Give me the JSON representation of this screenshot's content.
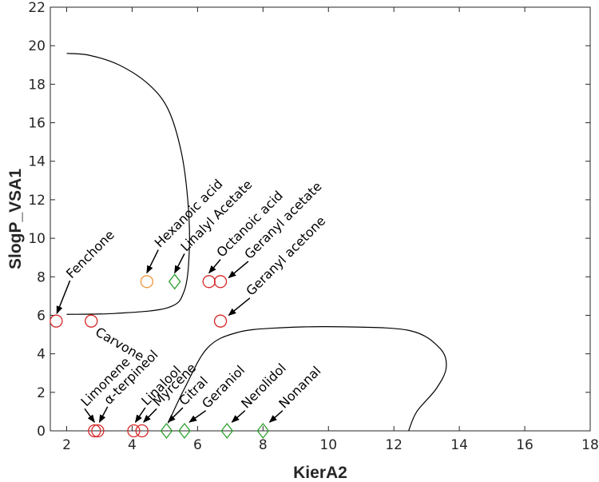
{
  "chart_data": {
    "type": "scatter",
    "xlabel": "KierA2",
    "ylabel": "SlogP_VSA1",
    "xlim": [
      1.5,
      18
    ],
    "ylim": [
      0,
      22
    ],
    "xticks": [
      2,
      4,
      6,
      8,
      10,
      12,
      14,
      16,
      18
    ],
    "yticks": [
      0,
      2,
      4,
      6,
      8,
      10,
      12,
      14,
      16,
      18,
      20,
      22
    ],
    "grid": false,
    "colors": {
      "red": "#d62728",
      "orange": "#f0963c",
      "green": "#2ca02c",
      "axis": "#262626",
      "curve": "#000000"
    },
    "points": [
      {
        "name": "Fenchone",
        "x": 1.68,
        "y": 5.7,
        "marker": "circle",
        "color": "red"
      },
      {
        "name": "Carvone",
        "x": 2.75,
        "y": 5.7,
        "marker": "circle",
        "color": "red"
      },
      {
        "name": "Hexanoic acid",
        "x": 4.45,
        "y": 7.75,
        "marker": "circle",
        "color": "orange"
      },
      {
        "name": "Linalyl Acetate",
        "x": 5.3,
        "y": 7.75,
        "marker": "diamond",
        "color": "green"
      },
      {
        "name": "Octanoic acid",
        "x": 6.35,
        "y": 7.75,
        "marker": "circle",
        "color": "red"
      },
      {
        "name": "Geranyl acetate",
        "x": 6.7,
        "y": 7.75,
        "marker": "circle",
        "color": "red"
      },
      {
        "name": "Geranyl acetone",
        "x": 6.7,
        "y": 5.7,
        "marker": "circle",
        "color": "red"
      },
      {
        "name": "Limonene",
        "x": 2.85,
        "y": 0,
        "marker": "circle",
        "color": "red"
      },
      {
        "name": "α-terpineol",
        "x": 2.95,
        "y": 0,
        "marker": "circle",
        "color": "red"
      },
      {
        "name": "Linalool",
        "x": 4.05,
        "y": 0,
        "marker": "circle",
        "color": "red"
      },
      {
        "name": "Myrcene",
        "x": 4.3,
        "y": 0,
        "marker": "circle",
        "color": "red"
      },
      {
        "name": "Citral",
        "x": 5.05,
        "y": 0,
        "marker": "diamond",
        "color": "green"
      },
      {
        "name": "Geraniol",
        "x": 5.6,
        "y": 0,
        "marker": "diamond",
        "color": "green"
      },
      {
        "name": "Nerolidol",
        "x": 6.9,
        "y": 0,
        "marker": "diamond",
        "color": "green"
      },
      {
        "name": "Nonanal",
        "x": 8.0,
        "y": 0,
        "marker": "diamond",
        "color": "green"
      }
    ],
    "annotations": [
      {
        "text": "Fenchone",
        "kind": "arrow",
        "rotate": -45,
        "tx": 2.1,
        "ty": 7.8,
        "ax": 1.7,
        "ay": 6.1
      },
      {
        "text": "Carvone",
        "kind": "text",
        "rotate": 30,
        "tx": 2.85,
        "ty": 5.0
      },
      {
        "text": "Hexanoic acid",
        "kind": "arrow",
        "rotate": -45,
        "tx": 4.8,
        "ty": 9.4,
        "ax": 4.45,
        "ay": 8.2
      },
      {
        "text": "Linalyl Acetate",
        "kind": "arrow",
        "rotate": -45,
        "tx": 5.6,
        "ty": 9.2,
        "ax": 5.3,
        "ay": 8.2
      },
      {
        "text": "Octanoic acid",
        "kind": "arrow",
        "rotate": -45,
        "tx": 6.7,
        "ty": 8.9,
        "ax": 6.35,
        "ay": 8.2
      },
      {
        "text": "Geranyl acetate",
        "kind": "arrow",
        "rotate": -45,
        "tx": 7.55,
        "ty": 8.8,
        "ax": 6.95,
        "ay": 7.95
      },
      {
        "text": "Geranyl acetone",
        "kind": "arrow",
        "rotate": -45,
        "tx": 7.6,
        "ty": 6.9,
        "ax": 6.95,
        "ay": 6.0
      },
      {
        "text": "Limonene",
        "kind": "arrow",
        "rotate": -45,
        "tx": 2.55,
        "ty": 1.15,
        "ax": 2.85,
        "ay": 0.45
      },
      {
        "text": "α-terpineol",
        "kind": "arrow",
        "rotate": -45,
        "tx": 3.25,
        "ty": 1.25,
        "ax": 3.0,
        "ay": 0.45
      },
      {
        "text": "Linalool",
        "kind": "arrow",
        "rotate": -45,
        "tx": 4.4,
        "ty": 1.2,
        "ax": 4.1,
        "ay": 0.45
      },
      {
        "text": "Myrcene",
        "kind": "arrow",
        "rotate": -45,
        "tx": 4.75,
        "ty": 1.15,
        "ax": 4.35,
        "ay": 0.45
      },
      {
        "text": "Citral",
        "kind": "arrow",
        "rotate": -45,
        "tx": 5.55,
        "ty": 1.2,
        "ax": 5.1,
        "ay": 0.45
      },
      {
        "text": "Geraniol",
        "kind": "arrow",
        "rotate": -45,
        "tx": 6.25,
        "ty": 1.05,
        "ax": 5.75,
        "ay": 0.45
      },
      {
        "text": "Nerolidol",
        "kind": "arrow",
        "rotate": -45,
        "tx": 7.45,
        "ty": 1.05,
        "ax": 7.05,
        "ay": 0.45
      },
      {
        "text": "Nonanal",
        "kind": "arrow",
        "rotate": -45,
        "tx": 8.6,
        "ty": 1.05,
        "ax": 8.2,
        "ay": 0.45
      }
    ],
    "boundaries": [
      {
        "name": "boundary-upper",
        "points": [
          [
            2.0,
            19.6
          ],
          [
            2.7,
            19.5
          ],
          [
            3.6,
            19.0
          ],
          [
            4.5,
            18.0
          ],
          [
            5.1,
            16.7
          ],
          [
            5.5,
            14.5
          ],
          [
            5.7,
            12.0
          ],
          [
            5.75,
            9.5
          ],
          [
            5.6,
            7.3
          ],
          [
            5.1,
            6.4
          ],
          [
            3.5,
            6.1
          ],
          [
            2.0,
            6.05
          ]
        ]
      },
      {
        "name": "boundary-lower",
        "points": [
          [
            5.1,
            0.4
          ],
          [
            5.6,
            2.2
          ],
          [
            6.3,
            4.3
          ],
          [
            7.2,
            5.1
          ],
          [
            8.5,
            5.35
          ],
          [
            10.5,
            5.4
          ],
          [
            12.5,
            5.2
          ],
          [
            13.4,
            4.3
          ],
          [
            13.6,
            3.3
          ],
          [
            13.3,
            2.2
          ],
          [
            12.7,
            1.0
          ],
          [
            12.45,
            0.0
          ]
        ]
      }
    ]
  }
}
